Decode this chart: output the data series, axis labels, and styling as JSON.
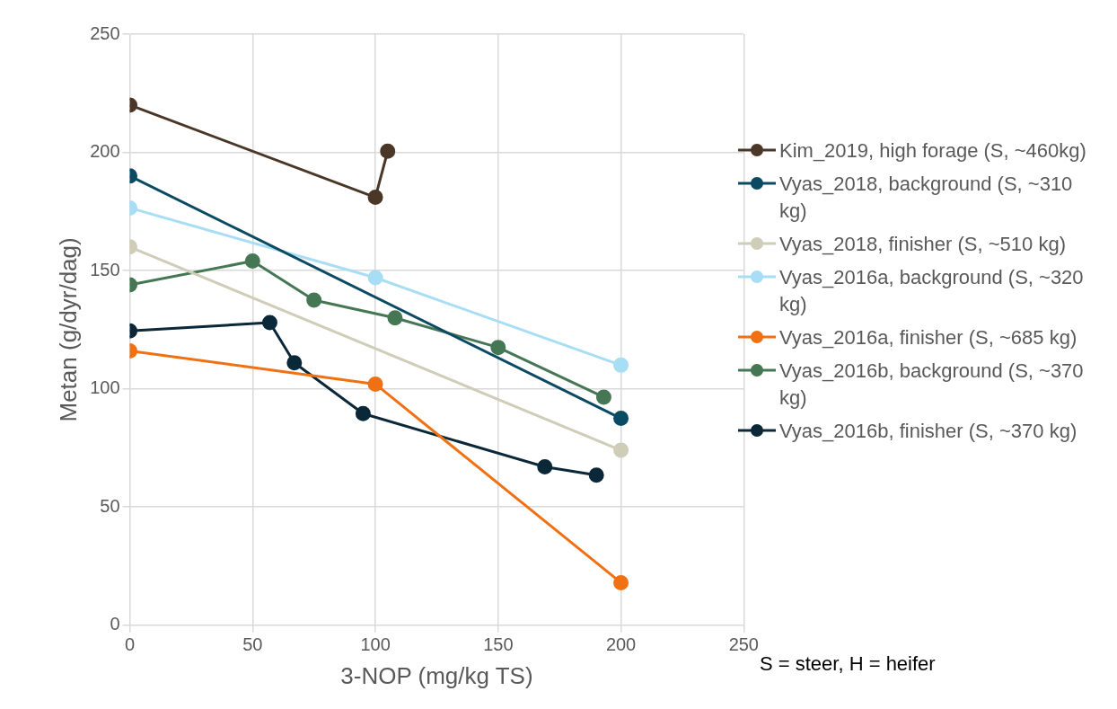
{
  "chart_data": {
    "type": "line",
    "xlabel": "3-NOP (mg/kg TS)",
    "ylabel": "Metan (g/dyr/dag)",
    "xlim": [
      0,
      250
    ],
    "xticks": [
      0,
      50,
      100,
      150,
      200,
      250
    ],
    "ylim": [
      0,
      250
    ],
    "yticks": [
      0,
      50,
      100,
      150,
      200,
      250
    ],
    "grid": true,
    "legend": "right",
    "marker": "circle",
    "line_style": "solid",
    "annotations": [
      "S = steer, H = heifer"
    ],
    "series": [
      {
        "name": "Kim_2019, high forage (S, ~460kg)",
        "color": "#4a3728",
        "x": [
          0,
          100,
          105
        ],
        "values": [
          220,
          181,
          200.5
        ]
      },
      {
        "name": "Vyas_2018, background (S, ~310 kg)",
        "color": "#0b4a63",
        "x": [
          0,
          200
        ],
        "values": [
          190,
          87.5
        ]
      },
      {
        "name": "Vyas_2018, finisher (S, ~510 kg)",
        "color": "#cfcdb8",
        "x": [
          0,
          200
        ],
        "values": [
          160,
          74
        ]
      },
      {
        "name": "Vyas_2016a, background (S, ~320 kg)",
        "color": "#a7ddf5",
        "x": [
          0,
          100,
          200
        ],
        "values": [
          176.5,
          147,
          110
        ]
      },
      {
        "name": "Vyas_2016a, finisher (S, ~685 kg)",
        "color": "#f07113",
        "x": [
          0,
          100,
          200
        ],
        "values": [
          116,
          102,
          18
        ]
      },
      {
        "name": "Vyas_2016b, background (S, ~370 kg)",
        "color": "#467755",
        "x": [
          0,
          50,
          75,
          108,
          150,
          193
        ],
        "values": [
          144,
          154,
          137.5,
          130,
          117.5,
          96.5
        ]
      },
      {
        "name": "Vyas_2016b, finisher (S, ~370 kg)",
        "color": "#0b2838",
        "x": [
          0,
          57,
          67,
          95,
          169,
          190
        ],
        "values": [
          124.5,
          128,
          111,
          89.5,
          67,
          63.5
        ]
      }
    ]
  }
}
